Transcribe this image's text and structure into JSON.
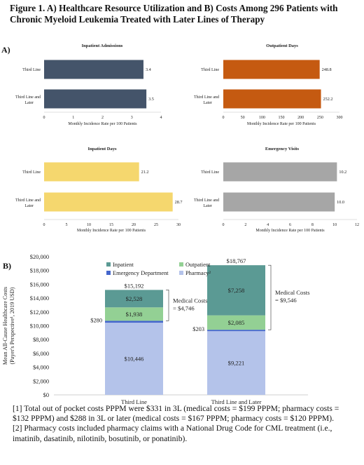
{
  "figure": {
    "title": "Figure 1. A) Healthcare Resource Utilization and B) Costs Among 296 Patients with Chronic Myeloid Leukemia Treated with Later Lines of Therapy",
    "panel_a_label": "A)",
    "panel_b_label": "B)"
  },
  "colors": {
    "inpatient_admissions": "#44546a",
    "outpatient_days": "#c55a11",
    "inpatient_days": "#f5d76e",
    "emergency_visits": "#a6a6a6",
    "stack_inpatient": "#5b9a94",
    "stack_outpatient": "#93d094",
    "stack_emergency": "#4466cc",
    "stack_pharmacy": "#b4c3ea"
  },
  "chart_data": [
    {
      "type": "bar",
      "orientation": "horizontal",
      "title": "Inpatient Admissions",
      "categories": [
        "Third Line",
        "Third Line and Later"
      ],
      "values": [
        3.4,
        3.5
      ],
      "value_labels": [
        "3.4",
        "3.5"
      ],
      "xlabel": "Monthly Incidence Rate per 100 Patients",
      "xlim": [
        0,
        4
      ],
      "xticks": [
        "0",
        "1",
        "2",
        "3",
        "4"
      ],
      "color": "#44546a"
    },
    {
      "type": "bar",
      "orientation": "horizontal",
      "title": "Outpatient Days",
      "categories": [
        "Third Line",
        "Third Line and Later"
      ],
      "values": [
        248.8,
        252.2
      ],
      "value_labels": [
        "248.8",
        "252.2"
      ],
      "xlabel": "Monthly Incidence Rate per 100 Patients",
      "xlim": [
        0,
        300
      ],
      "xticks": [
        "0",
        "50",
        "100",
        "150",
        "200",
        "250",
        "300"
      ],
      "color": "#c55a11"
    },
    {
      "type": "bar",
      "orientation": "horizontal",
      "title": "Inpatient Days",
      "categories": [
        "Third Line",
        "Third Line and Later"
      ],
      "values": [
        21.2,
        28.7
      ],
      "value_labels": [
        "21.2",
        "28.7"
      ],
      "xlabel": "Monthly Incidence Rate per 100 Patients",
      "xlim": [
        0,
        30
      ],
      "xticks": [
        "0",
        "5",
        "10",
        "15",
        "20",
        "25",
        "30"
      ],
      "color": "#f5d76e"
    },
    {
      "type": "bar",
      "orientation": "horizontal",
      "title": "Emergency Visits",
      "categories": [
        "Third Line",
        "Third Line and Later"
      ],
      "values": [
        10.2,
        10.0
      ],
      "value_labels": [
        "10.2",
        "10.0"
      ],
      "xlabel": "Monthly Incidence Rate per 100 Patients",
      "xlim": [
        0,
        12
      ],
      "xticks": [
        "0",
        "2",
        "4",
        "6",
        "8",
        "10",
        "12"
      ],
      "color": "#a6a6a6"
    },
    {
      "type": "bar",
      "stacked": true,
      "categories": [
        "Third Line",
        "Third Line and Later"
      ],
      "ylabel": "Mean All-Cause Healthcare Costs (Payer's Perspective¹, 2019 USD)",
      "ylim": [
        0,
        20000
      ],
      "yticks": [
        "$0",
        "$2,000",
        "$4,000",
        "$6,000",
        "$8,000",
        "$10,000",
        "$12,000",
        "$14,000",
        "$16,000",
        "$18,000",
        "$20,000"
      ],
      "series": [
        {
          "name": "Pharmacy²",
          "values": [
            10446,
            9221
          ],
          "labels": [
            "$10,446",
            "$9,221"
          ],
          "color": "#b4c3ea"
        },
        {
          "name": "Emergency Department",
          "values": [
            280,
            203
          ],
          "labels": [
            "$280",
            "$203"
          ],
          "color": "#4466cc"
        },
        {
          "name": "Outpatient",
          "values": [
            1938,
            2085
          ],
          "labels": [
            "$1,938",
            "$2,085"
          ],
          "color": "#93d094"
        },
        {
          "name": "Inpatient",
          "values": [
            2528,
            7258
          ],
          "labels": [
            "$2,528",
            "$7,258"
          ],
          "color": "#5b9a94"
        }
      ],
      "legend_order": [
        "Inpatient",
        "Outpatient",
        "Emergency Department",
        "Pharmacy²"
      ],
      "totals": [
        15192,
        18767
      ],
      "total_labels": [
        "$15,192",
        "$18,767"
      ],
      "medical_costs": [
        4746,
        9546
      ],
      "medical_cost_labels": [
        "Medical Costs = $4,746",
        "Medical Costs = $9,546"
      ]
    }
  ],
  "footnotes": [
    "[1] Total out of pocket costs PPPM were $331 in 3L (medical costs = $199 PPPM; pharmacy costs = $132 PPPM) and $288 in 3L or later (medical costs = $167 PPPM; pharmacy costs = $120 PPPM).",
    "[2] Pharmacy costs included pharmacy claims with a National Drug Code for CML treatment (i.e., imatinib, dasatinib, nilotinib, bosutinib, or ponatinib)."
  ]
}
